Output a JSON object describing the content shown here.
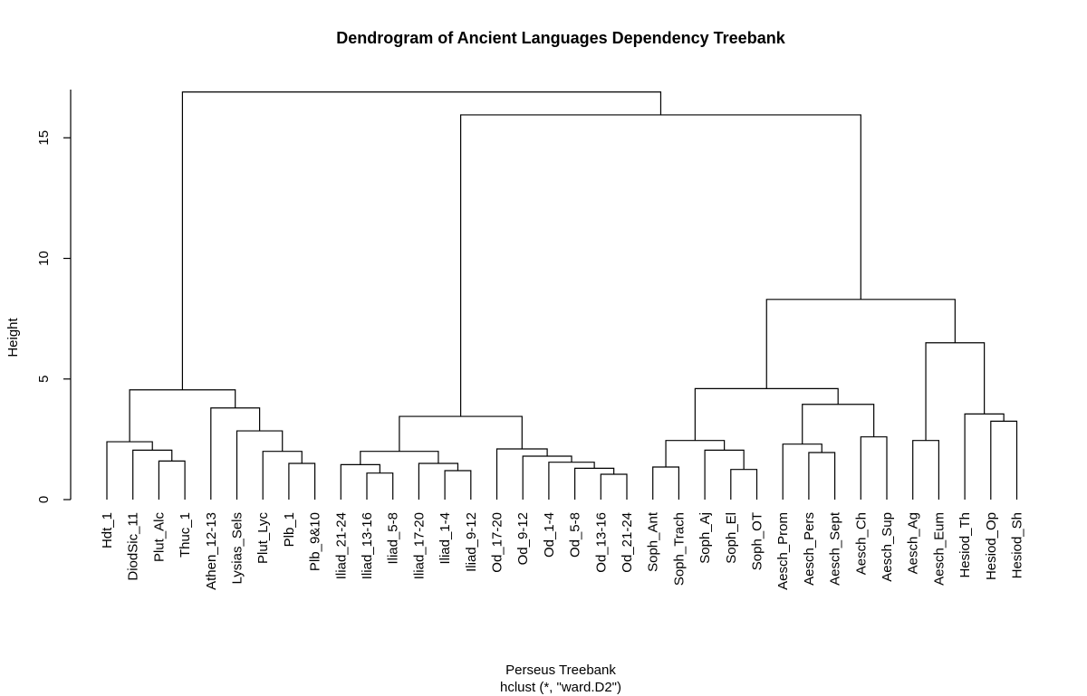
{
  "chart_data": {
    "type": "dendrogram",
    "title": "Dendrogram of Ancient Languages Dependency Treebank",
    "xlabel": "Perseus Treebank",
    "sublabel": "hclust (*, \"ward.D2\")",
    "ylabel": "Height",
    "ylim": [
      0,
      17
    ],
    "yticks": [
      0,
      5,
      10,
      15
    ],
    "leaves": [
      "Hdt_1",
      "DiodSic_11",
      "Plut_Alc",
      "Thuc_1",
      "Athen_12-13",
      "Lysias_Sels",
      "Plut_Lyc",
      "Plb_1",
      "Plb_9&10",
      "Iliad_21-24",
      "Iliad_13-16",
      "Iliad_5-8",
      "Iliad_17-20",
      "Iliad_1-4",
      "Iliad_9-12",
      "Od_17-20",
      "Od_9-12",
      "Od_1-4",
      "Od_5-8",
      "Od_13-16",
      "Od_21-24",
      "Soph_Ant",
      "Soph_Trach",
      "Soph_Aj",
      "Soph_El",
      "Soph_OT",
      "Aesch_Prom",
      "Aesch_Pers",
      "Aesch_Sept",
      "Aesch_Ch",
      "Aesch_Sup",
      "Aesch_Ag",
      "Aesch_Eum",
      "Hesiod_Th",
      "Hesiod_Op",
      "Hesiod_Sh"
    ],
    "merges": [
      {
        "a": "L2",
        "b": "L3",
        "h": 1.6
      },
      {
        "a": "L1",
        "b": "M0",
        "h": 2.05
      },
      {
        "a": "L0",
        "b": "M1",
        "h": 2.4
      },
      {
        "a": "L7",
        "b": "L8",
        "h": 1.5
      },
      {
        "a": "L6",
        "b": "M3",
        "h": 2.0
      },
      {
        "a": "L5",
        "b": "M4",
        "h": 2.85
      },
      {
        "a": "L4",
        "b": "M5",
        "h": 3.8
      },
      {
        "a": "M2",
        "b": "M6",
        "h": 4.55
      },
      {
        "a": "L10",
        "b": "L11",
        "h": 1.1
      },
      {
        "a": "L9",
        "b": "M8",
        "h": 1.45
      },
      {
        "a": "L13",
        "b": "L14",
        "h": 1.2
      },
      {
        "a": "L12",
        "b": "M10",
        "h": 1.5
      },
      {
        "a": "M9",
        "b": "M11",
        "h": 2.0
      },
      {
        "a": "L19",
        "b": "L20",
        "h": 1.05
      },
      {
        "a": "L18",
        "b": "M13",
        "h": 1.3
      },
      {
        "a": "L17",
        "b": "M14",
        "h": 1.55
      },
      {
        "a": "L16",
        "b": "M15",
        "h": 1.8
      },
      {
        "a": "L15",
        "b": "M16",
        "h": 2.1
      },
      {
        "a": "M12",
        "b": "M17",
        "h": 3.45
      },
      {
        "a": "L21",
        "b": "L22",
        "h": 1.35
      },
      {
        "a": "L24",
        "b": "L25",
        "h": 1.25
      },
      {
        "a": "L23",
        "b": "M20",
        "h": 2.05
      },
      {
        "a": "M19",
        "b": "M21",
        "h": 2.45
      },
      {
        "a": "L27",
        "b": "L28",
        "h": 1.95
      },
      {
        "a": "L26",
        "b": "M23",
        "h": 2.3
      },
      {
        "a": "L29",
        "b": "L30",
        "h": 2.6
      },
      {
        "a": "M24",
        "b": "M25",
        "h": 3.95
      },
      {
        "a": "M22",
        "b": "M26",
        "h": 4.6
      },
      {
        "a": "L31",
        "b": "L32",
        "h": 2.45
      },
      {
        "a": "L34",
        "b": "L35",
        "h": 3.25
      },
      {
        "a": "L33",
        "b": "M29",
        "h": 3.55
      },
      {
        "a": "M28",
        "b": "M30",
        "h": 6.5
      },
      {
        "a": "M27",
        "b": "M31",
        "h": 8.3
      },
      {
        "a": "M18",
        "b": "M32",
        "h": 15.95
      },
      {
        "a": "M7",
        "b": "M33",
        "h": 16.9
      }
    ]
  }
}
